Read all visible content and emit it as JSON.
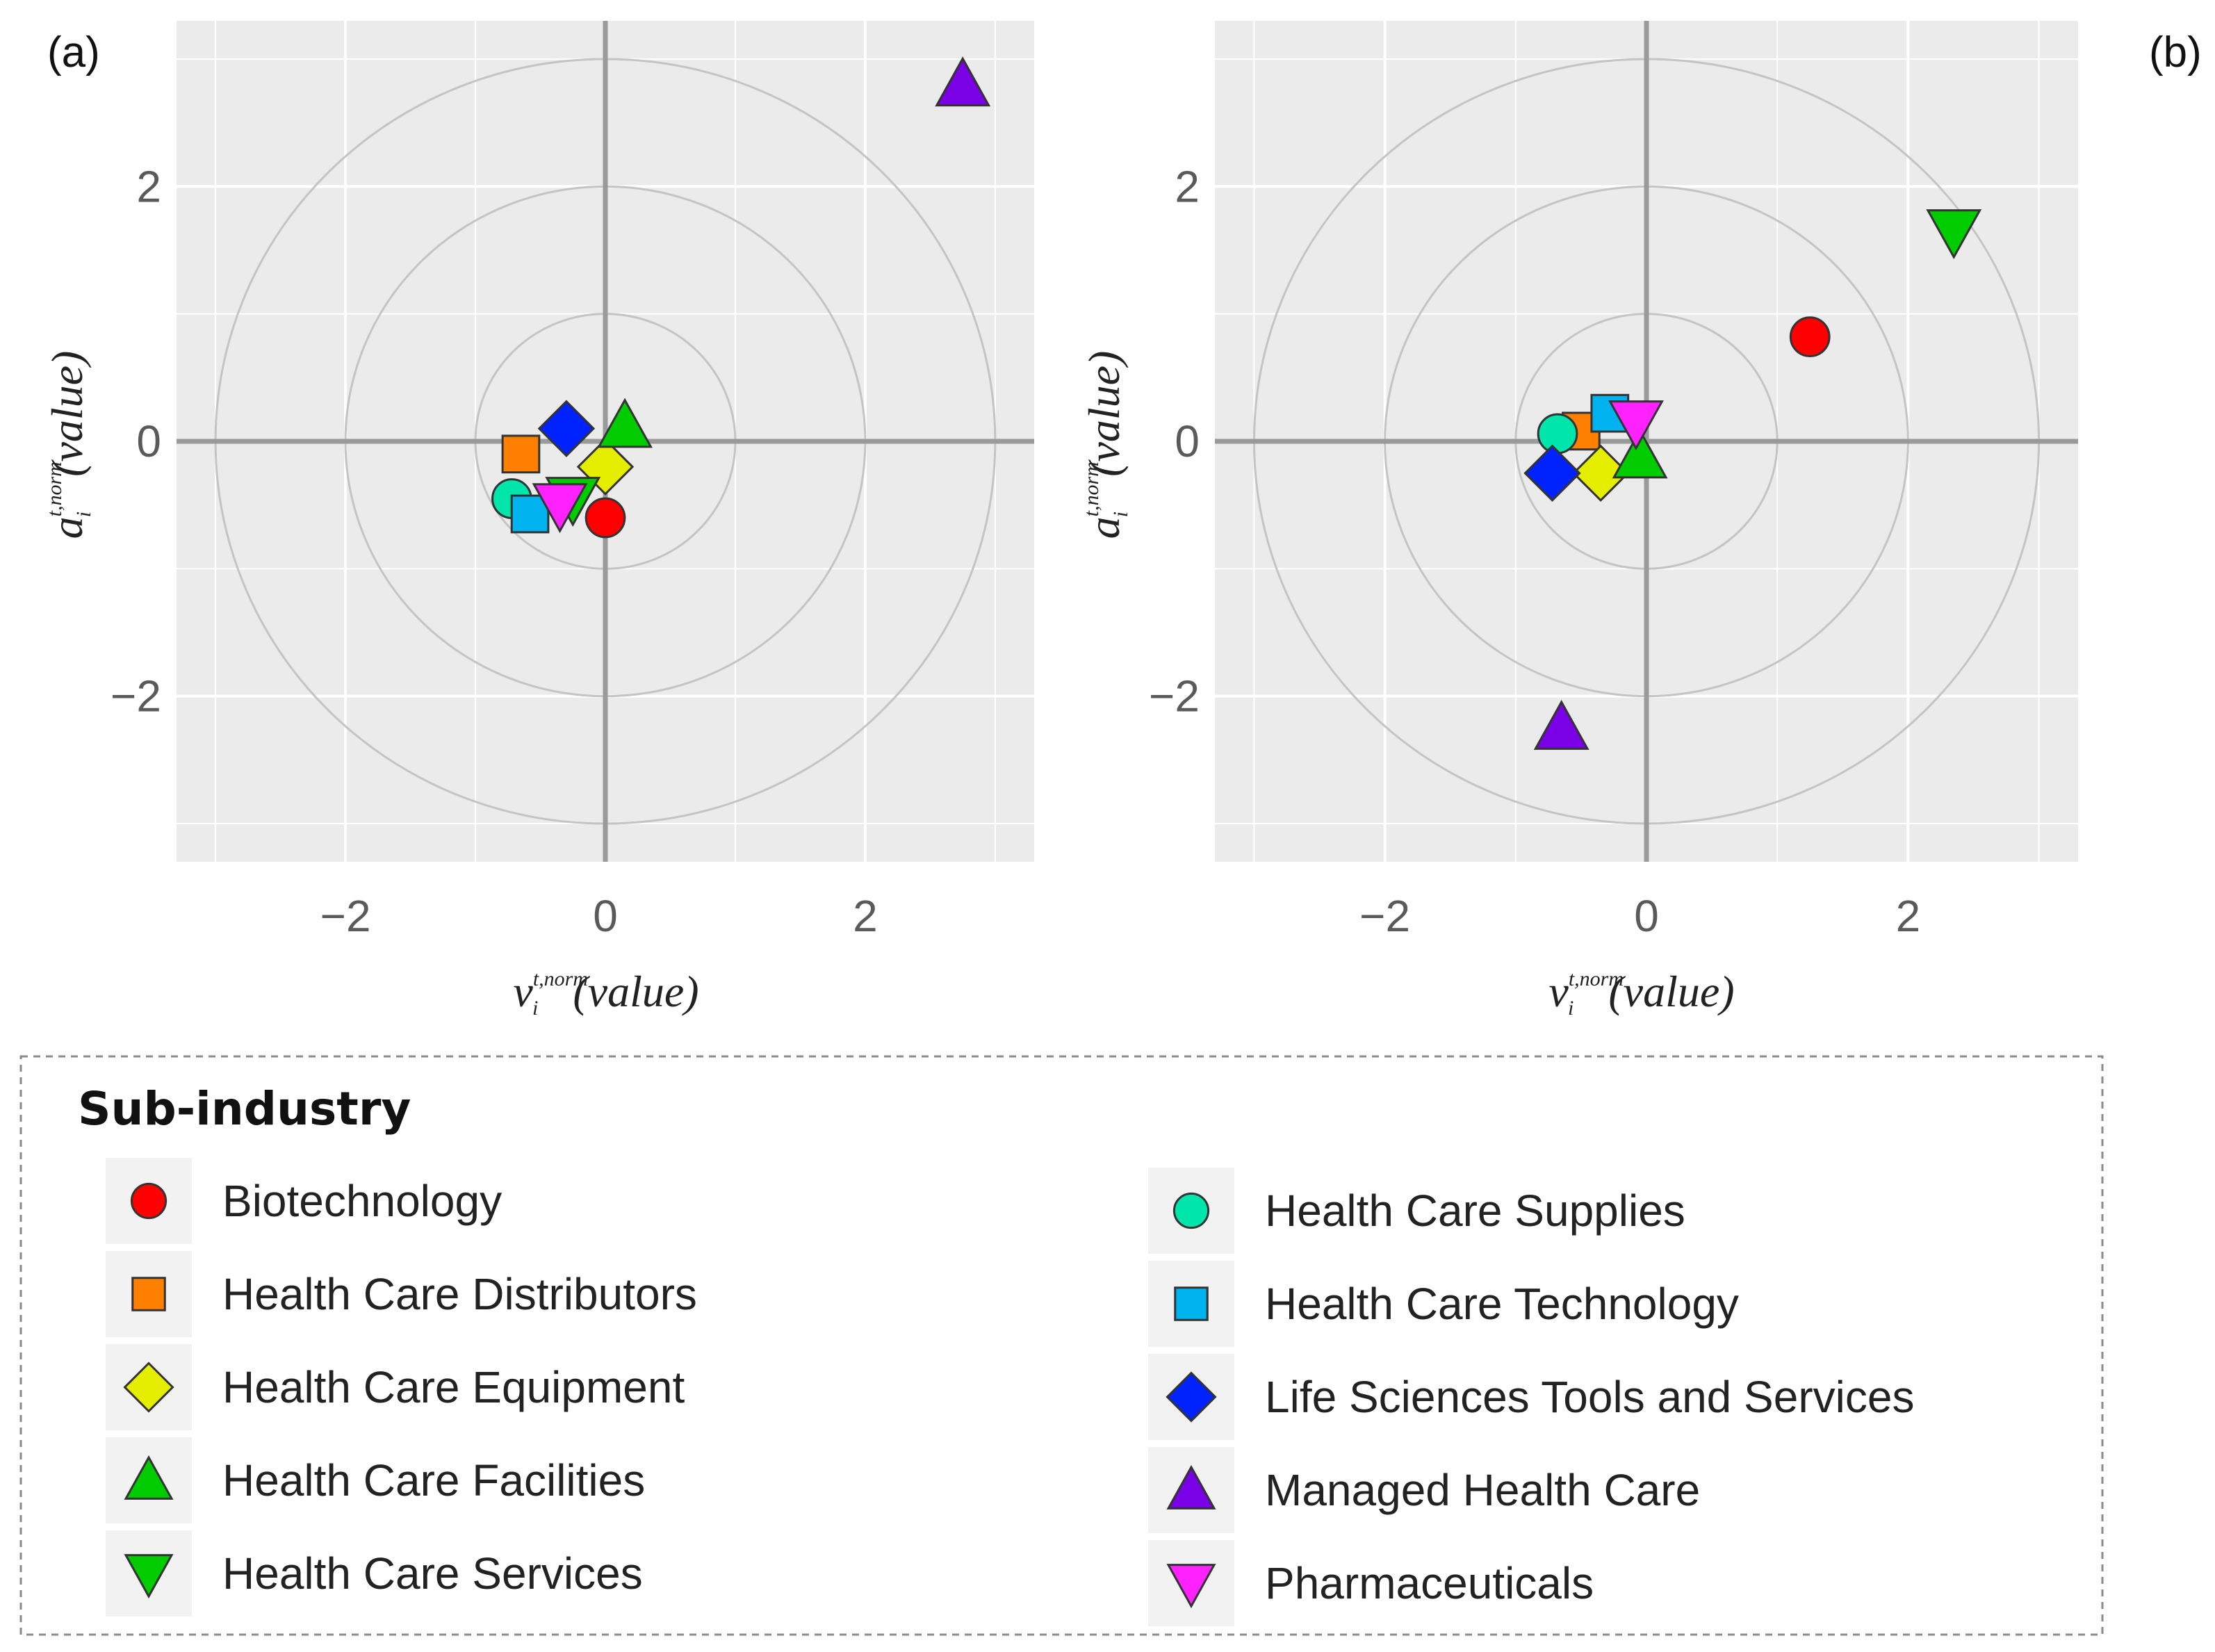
{
  "legend": {
    "title": "Sub-industry",
    "column_left": [
      {
        "label": "Biotechnology",
        "shape": "circle",
        "color": "#ff0000"
      },
      {
        "label": "Health Care Distributors",
        "shape": "square",
        "color": "#ff7f00"
      },
      {
        "label": "Health Care Equipment",
        "shape": "diamond",
        "color": "#e5ee00"
      },
      {
        "label": "Health Care Facilities",
        "shape": "triangle-up",
        "color": "#00cc00"
      },
      {
        "label": "Health Care Services",
        "shape": "triangle-down",
        "color": "#00cc00"
      }
    ],
    "column_right": [
      {
        "label": "Health Care Supplies",
        "shape": "circle",
        "color": "#00e5aa"
      },
      {
        "label": "Health Care Technology",
        "shape": "square",
        "color": "#00b2ee"
      },
      {
        "label": "Life Sciences Tools and Services",
        "shape": "diamond",
        "color": "#0022ff"
      },
      {
        "label": "Managed Health Care",
        "shape": "triangle-up",
        "color": "#7a00e5"
      },
      {
        "label": "Pharmaceuticals",
        "shape": "triangle-down",
        "color": "#ff22ff"
      }
    ]
  },
  "chart_data": [
    {
      "panel_label": "(a)",
      "type": "scatter",
      "xlabel": "v",
      "ylabel": "a",
      "label_superscript": "t,norm",
      "label_subscript": "i",
      "label_suffix": "(value)",
      "xlim": [
        -3.3,
        3.3
      ],
      "ylim": [
        -3.3,
        3.3
      ],
      "xticks": [
        {
          "v": -2,
          "label": "−2"
        },
        {
          "v": 0,
          "label": "0"
        },
        {
          "v": 2,
          "label": "2"
        }
      ],
      "yticks": [
        {
          "v": 2,
          "label": "2"
        },
        {
          "v": 0,
          "label": "0"
        },
        {
          "v": -2,
          "label": "−2"
        }
      ],
      "rings": [
        1,
        2,
        3
      ],
      "points": [
        {
          "series": "Biotechnology",
          "shape": "circle",
          "color": "#ff0000",
          "x": 0.0,
          "y": -0.6
        },
        {
          "series": "Health Care Distributors",
          "shape": "square",
          "color": "#ff7f00",
          "x": -0.65,
          "y": -0.1
        },
        {
          "series": "Health Care Equipment",
          "shape": "diamond",
          "color": "#e5ee00",
          "x": 0.0,
          "y": -0.2
        },
        {
          "series": "Health Care Facilities",
          "shape": "triangle-up",
          "color": "#00cc00",
          "x": 0.15,
          "y": 0.12
        },
        {
          "series": "Health Care Services",
          "shape": "triangle-down",
          "color": "#00cc00",
          "x": -0.25,
          "y": -0.45
        },
        {
          "series": "Health Care Supplies",
          "shape": "circle",
          "color": "#00e5aa",
          "x": -0.72,
          "y": -0.45
        },
        {
          "series": "Health Care Technology",
          "shape": "square",
          "color": "#00b2ee",
          "x": -0.58,
          "y": -0.57
        },
        {
          "series": "Life Sciences Tools and Services",
          "shape": "diamond",
          "color": "#0022ff",
          "x": -0.3,
          "y": 0.1
        },
        {
          "series": "Managed Health Care",
          "shape": "triangle-up",
          "color": "#7a00e5",
          "x": 2.75,
          "y": 2.8
        },
        {
          "series": "Pharmaceuticals",
          "shape": "triangle-down",
          "color": "#ff22ff",
          "x": -0.35,
          "y": -0.5
        }
      ]
    },
    {
      "panel_label": "(b)",
      "type": "scatter",
      "xlabel": "v",
      "ylabel": "a",
      "label_superscript": "t,norm",
      "label_subscript": "i",
      "label_suffix": "(value)",
      "xlim": [
        -3.3,
        3.3
      ],
      "ylim": [
        -3.3,
        3.3
      ],
      "xticks": [
        {
          "v": -2,
          "label": "−2"
        },
        {
          "v": 0,
          "label": "0"
        },
        {
          "v": 2,
          "label": "2"
        }
      ],
      "yticks": [
        {
          "v": 2,
          "label": "2"
        },
        {
          "v": 0,
          "label": "0"
        },
        {
          "v": -2,
          "label": "−2"
        }
      ],
      "rings": [
        1,
        2,
        3
      ],
      "points": [
        {
          "series": "Biotechnology",
          "shape": "circle",
          "color": "#ff0000",
          "x": 1.25,
          "y": 0.82
        },
        {
          "series": "Health Care Distributors",
          "shape": "square",
          "color": "#ff7f00",
          "x": -0.5,
          "y": 0.08
        },
        {
          "series": "Health Care Equipment",
          "shape": "diamond",
          "color": "#e5ee00",
          "x": -0.35,
          "y": -0.25
        },
        {
          "series": "Health Care Facilities",
          "shape": "triangle-up",
          "color": "#00cc00",
          "x": -0.05,
          "y": -0.12
        },
        {
          "series": "Health Care Services",
          "shape": "triangle-down",
          "color": "#00cc00",
          "x": 2.35,
          "y": 1.65
        },
        {
          "series": "Health Care Supplies",
          "shape": "circle",
          "color": "#00e5aa",
          "x": -0.68,
          "y": 0.06
        },
        {
          "series": "Health Care Technology",
          "shape": "square",
          "color": "#00b2ee",
          "x": -0.28,
          "y": 0.22
        },
        {
          "series": "Life Sciences Tools and Services",
          "shape": "diamond",
          "color": "#0022ff",
          "x": -0.72,
          "y": -0.25
        },
        {
          "series": "Managed Health Care",
          "shape": "triangle-up",
          "color": "#7a00e5",
          "x": -0.65,
          "y": -2.25
        },
        {
          "series": "Pharmaceuticals",
          "shape": "triangle-down",
          "color": "#ff22ff",
          "x": -0.08,
          "y": 0.15
        }
      ]
    }
  ]
}
